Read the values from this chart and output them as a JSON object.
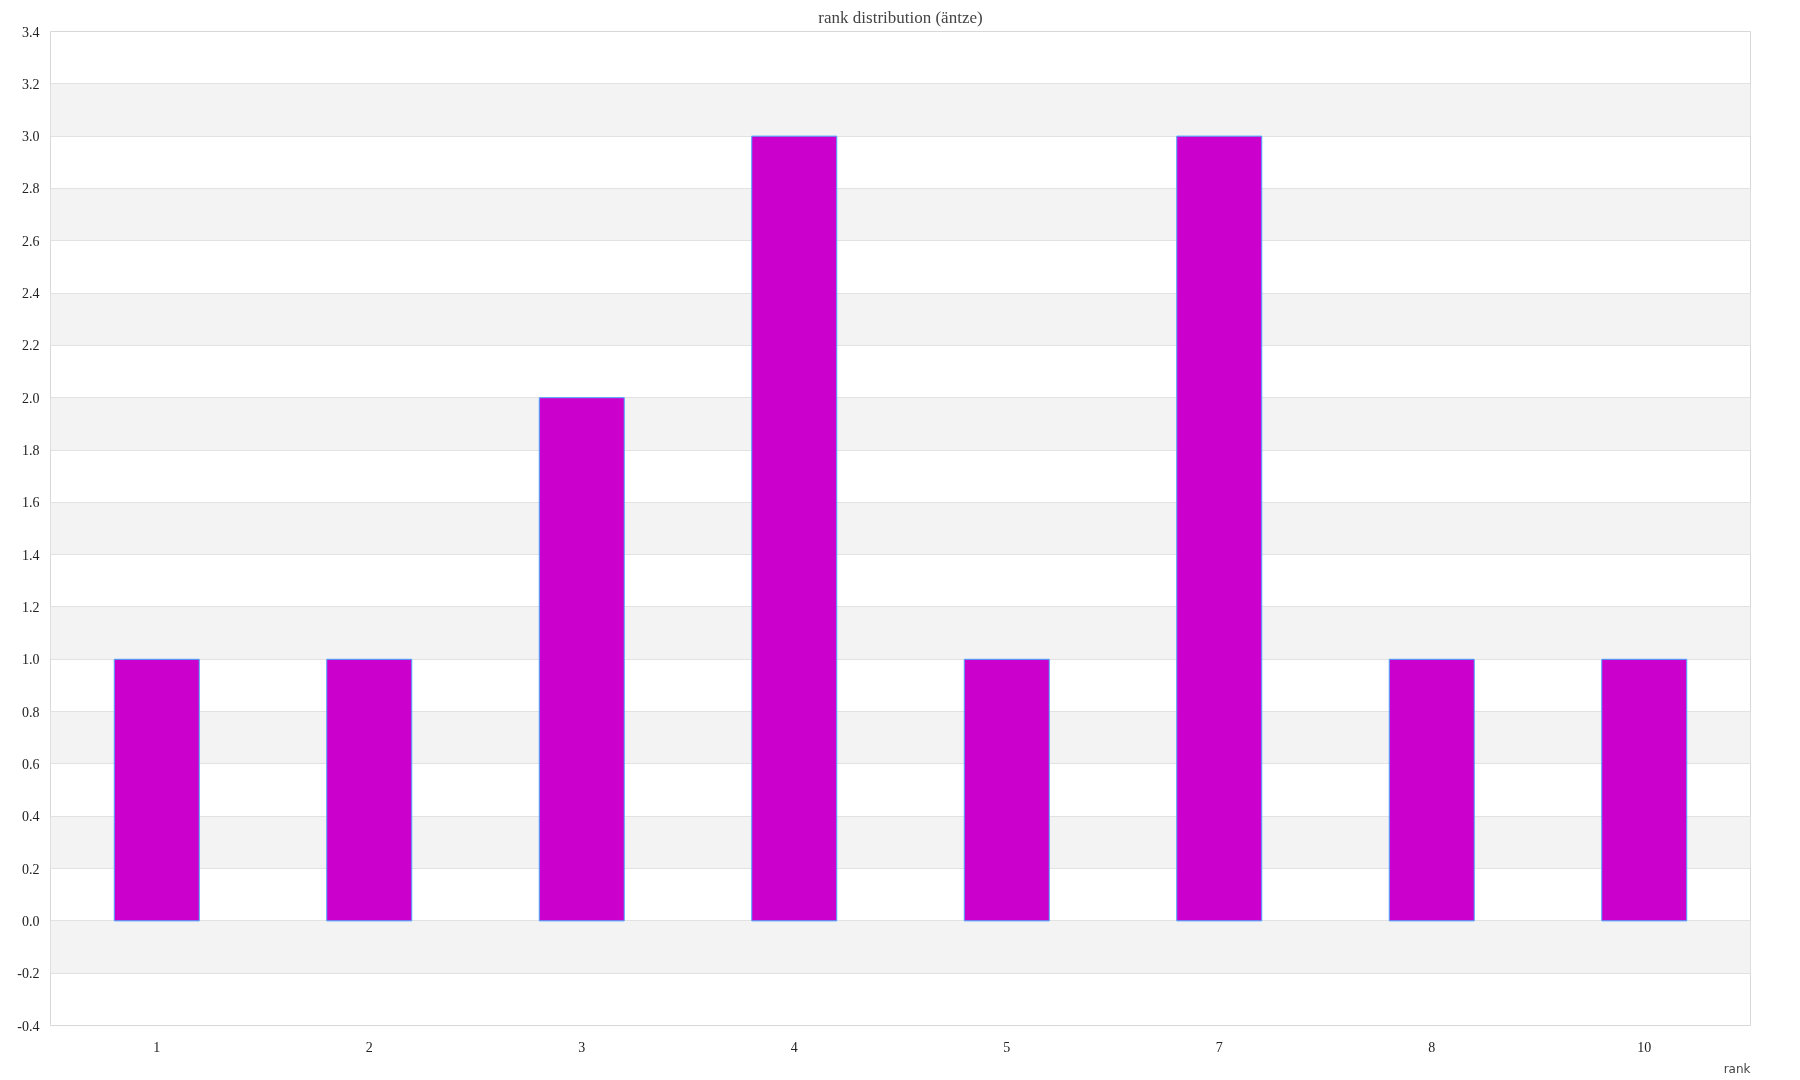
{
  "chart_data": {
    "type": "bar",
    "title": "rank distribution (äntze)",
    "xlabel": "rank",
    "categories": [
      "1",
      "2",
      "3",
      "4",
      "5",
      "7",
      "8",
      "10"
    ],
    "values": [
      1,
      1,
      2,
      3,
      1,
      3,
      1,
      1
    ],
    "color": "#cc00cc",
    "ylim": [
      -0.4,
      3.4
    ],
    "yticks": [
      {
        "value": -0.4,
        "label": "-0.4"
      },
      {
        "value": -0.2,
        "label": "-0.2"
      },
      {
        "value": 0,
        "label": "0.0"
      },
      {
        "value": 0.2,
        "label": "0.2"
      },
      {
        "value": 0.4,
        "label": "0.4"
      },
      {
        "value": 0.6,
        "label": "0.6"
      },
      {
        "value": 0.8,
        "label": "0.8"
      },
      {
        "value": 1,
        "label": "1.0"
      },
      {
        "value": 1.2,
        "label": "1.2"
      },
      {
        "value": 1.4,
        "label": "1.4"
      },
      {
        "value": 1.6,
        "label": "1.6"
      },
      {
        "value": 1.8,
        "label": "1.8"
      },
      {
        "value": 2,
        "label": "2.0"
      },
      {
        "value": 2.2,
        "label": "2.2"
      },
      {
        "value": 2.4,
        "label": "2.4"
      },
      {
        "value": 2.6,
        "label": "2.6"
      },
      {
        "value": 2.8,
        "label": "2.8"
      },
      {
        "value": 3,
        "label": "3.0"
      },
      {
        "value": 3.2,
        "label": "3.2"
      },
      {
        "value": 3.4,
        "label": "3.4"
      }
    ],
    "grid": "y"
  }
}
